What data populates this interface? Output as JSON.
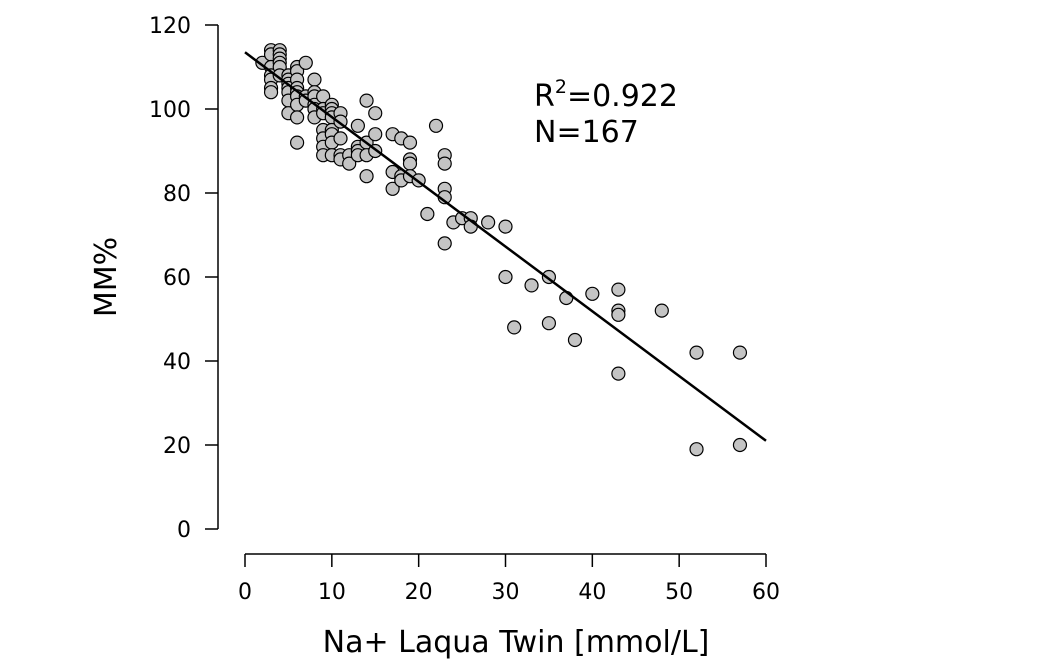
{
  "chart_data": {
    "type": "scatter",
    "xlabel": "Na+ Laqua Twin [mmol/L]",
    "ylabel": "MM%",
    "xlim": [
      0,
      60
    ],
    "ylim": [
      0,
      120
    ],
    "x_ticks": [
      "0",
      "10",
      "20",
      "30",
      "40",
      "50",
      "60"
    ],
    "y_ticks": [
      "0",
      "20",
      "40",
      "60",
      "80",
      "100",
      "120"
    ],
    "grid": false,
    "annotation": {
      "r_prefix": "R",
      "r_sup": "2",
      "r_value": "=0.922",
      "n_text": "N=167"
    },
    "point_color": "#c4c4c4",
    "fit_line": {
      "x": [
        0,
        60
      ],
      "y": [
        113.5,
        21
      ]
    },
    "points": [
      {
        "x": 2,
        "y": 111
      },
      {
        "x": 3,
        "y": 114
      },
      {
        "x": 3,
        "y": 113
      },
      {
        "x": 3,
        "y": 110
      },
      {
        "x": 3,
        "y": 108
      },
      {
        "x": 3,
        "y": 107
      },
      {
        "x": 3,
        "y": 105
      },
      {
        "x": 3,
        "y": 104
      },
      {
        "x": 4,
        "y": 114
      },
      {
        "x": 4,
        "y": 113
      },
      {
        "x": 4,
        "y": 112
      },
      {
        "x": 4,
        "y": 111
      },
      {
        "x": 4,
        "y": 110
      },
      {
        "x": 4,
        "y": 108
      },
      {
        "x": 5,
        "y": 108
      },
      {
        "x": 5,
        "y": 107
      },
      {
        "x": 5,
        "y": 106
      },
      {
        "x": 5,
        "y": 105
      },
      {
        "x": 5,
        "y": 104
      },
      {
        "x": 5,
        "y": 102
      },
      {
        "x": 5,
        "y": 99
      },
      {
        "x": 6,
        "y": 110
      },
      {
        "x": 6,
        "y": 109
      },
      {
        "x": 6,
        "y": 107
      },
      {
        "x": 6,
        "y": 105
      },
      {
        "x": 6,
        "y": 104
      },
      {
        "x": 6,
        "y": 103
      },
      {
        "x": 6,
        "y": 101
      },
      {
        "x": 6,
        "y": 98
      },
      {
        "x": 6,
        "y": 92
      },
      {
        "x": 7,
        "y": 111
      },
      {
        "x": 7,
        "y": 103
      },
      {
        "x": 7,
        "y": 102
      },
      {
        "x": 8,
        "y": 107
      },
      {
        "x": 8,
        "y": 104
      },
      {
        "x": 8,
        "y": 103
      },
      {
        "x": 8,
        "y": 101
      },
      {
        "x": 8,
        "y": 100
      },
      {
        "x": 8,
        "y": 98
      },
      {
        "x": 9,
        "y": 103
      },
      {
        "x": 9,
        "y": 100
      },
      {
        "x": 9,
        "y": 99
      },
      {
        "x": 9,
        "y": 95
      },
      {
        "x": 9,
        "y": 93
      },
      {
        "x": 9,
        "y": 91
      },
      {
        "x": 9,
        "y": 89
      },
      {
        "x": 10,
        "y": 101
      },
      {
        "x": 10,
        "y": 100
      },
      {
        "x": 10,
        "y": 99
      },
      {
        "x": 10,
        "y": 98
      },
      {
        "x": 10,
        "y": 95
      },
      {
        "x": 10,
        "y": 94
      },
      {
        "x": 10,
        "y": 92
      },
      {
        "x": 10,
        "y": 89
      },
      {
        "x": 11,
        "y": 99
      },
      {
        "x": 11,
        "y": 97
      },
      {
        "x": 11,
        "y": 93
      },
      {
        "x": 11,
        "y": 89
      },
      {
        "x": 11,
        "y": 88
      },
      {
        "x": 12,
        "y": 89
      },
      {
        "x": 12,
        "y": 87
      },
      {
        "x": 13,
        "y": 96
      },
      {
        "x": 13,
        "y": 91
      },
      {
        "x": 13,
        "y": 90
      },
      {
        "x": 13,
        "y": 89
      },
      {
        "x": 14,
        "y": 102
      },
      {
        "x": 14,
        "y": 92
      },
      {
        "x": 14,
        "y": 89
      },
      {
        "x": 14,
        "y": 84
      },
      {
        "x": 15,
        "y": 99
      },
      {
        "x": 15,
        "y": 94
      },
      {
        "x": 15,
        "y": 90
      },
      {
        "x": 17,
        "y": 94
      },
      {
        "x": 17,
        "y": 85
      },
      {
        "x": 17,
        "y": 81
      },
      {
        "x": 18,
        "y": 93
      },
      {
        "x": 18,
        "y": 84
      },
      {
        "x": 18,
        "y": 83
      },
      {
        "x": 19,
        "y": 92
      },
      {
        "x": 19,
        "y": 88
      },
      {
        "x": 19,
        "y": 87
      },
      {
        "x": 19,
        "y": 84
      },
      {
        "x": 20,
        "y": 83
      },
      {
        "x": 21,
        "y": 75
      },
      {
        "x": 22,
        "y": 96
      },
      {
        "x": 23,
        "y": 89
      },
      {
        "x": 23,
        "y": 87
      },
      {
        "x": 23,
        "y": 81
      },
      {
        "x": 23,
        "y": 79
      },
      {
        "x": 23,
        "y": 68
      },
      {
        "x": 24,
        "y": 73
      },
      {
        "x": 25,
        "y": 74
      },
      {
        "x": 26,
        "y": 74
      },
      {
        "x": 26,
        "y": 72
      },
      {
        "x": 28,
        "y": 73
      },
      {
        "x": 30,
        "y": 72
      },
      {
        "x": 30,
        "y": 60
      },
      {
        "x": 31,
        "y": 48
      },
      {
        "x": 33,
        "y": 58
      },
      {
        "x": 35,
        "y": 60
      },
      {
        "x": 35,
        "y": 49
      },
      {
        "x": 37,
        "y": 55
      },
      {
        "x": 38,
        "y": 45
      },
      {
        "x": 40,
        "y": 56
      },
      {
        "x": 43,
        "y": 57
      },
      {
        "x": 43,
        "y": 52
      },
      {
        "x": 43,
        "y": 51
      },
      {
        "x": 43,
        "y": 37
      },
      {
        "x": 48,
        "y": 52
      },
      {
        "x": 52,
        "y": 42
      },
      {
        "x": 52,
        "y": 19
      },
      {
        "x": 57,
        "y": 42
      },
      {
        "x": 57,
        "y": 20
      }
    ]
  }
}
